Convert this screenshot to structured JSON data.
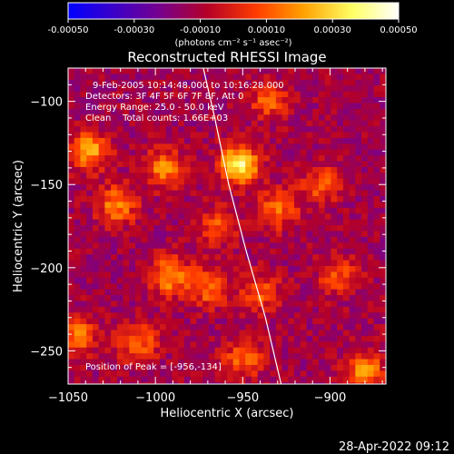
{
  "footer_timestamp": "28-Apr-2022 09:12",
  "colorbar": {
    "tick_labels": [
      "-0.00050",
      "-0.00030",
      "-0.00010",
      "0.00010",
      "0.00030",
      "0.00050"
    ],
    "tick_values": [
      -0.0005,
      -0.0003,
      -0.0001,
      0.0001,
      0.0003,
      0.0005
    ],
    "range": [
      -0.0005,
      0.0005
    ],
    "unit_label": "(photons cm⁻² s⁻¹ asec⁻²)",
    "colors": [
      "#0000ff",
      "#3c00c8",
      "#78008c",
      "#b40028",
      "#ff3c00",
      "#ffa000",
      "#ffff64",
      "#ffffff"
    ]
  },
  "chart_data": {
    "type": "heatmap",
    "title": "Reconstructed RHESSI Image",
    "xlabel": "Heliocentric X (arcsec)",
    "ylabel": "Heliocentric Y (arcsec)",
    "xlim": [
      -1050,
      -868
    ],
    "ylim": [
      -270,
      -80
    ],
    "xticks": [
      -1050,
      -1000,
      -950,
      -900
    ],
    "xtick_labels": [
      "−1050",
      "−1000",
      "−950",
      "−900"
    ],
    "yticks": [
      -250,
      -200,
      -150,
      -100
    ],
    "ytick_labels": [
      "−250",
      "−200",
      "−150",
      "−100"
    ],
    "grid": false,
    "annotations": [
      "9-Feb-2005 10:14:48.000 to 10:16:28.000",
      "Detectors: 3F 4F 5F 6F 7F 8F, Att 0",
      "Energy Range: 25.0 - 50.0 keV",
      "Clean    Total counts: 1.66E+03",
      "Position of Peak = [-956,-134]"
    ],
    "peak": [
      -956,
      -134
    ],
    "limb_curve": [
      [
        -973,
        -78
      ],
      [
        -966,
        -110
      ],
      [
        -958,
        -150
      ],
      [
        -948,
        -190
      ],
      [
        -937,
        -230
      ],
      [
        -928,
        -270
      ]
    ],
    "blobs": [
      {
        "x": -952,
        "y": -138,
        "v": 0.0005
      },
      {
        "x": -1038,
        "y": -130,
        "v": 0.00035
      },
      {
        "x": -1022,
        "y": -162,
        "v": 0.0003
      },
      {
        "x": -995,
        "y": -140,
        "v": 0.00028
      },
      {
        "x": -992,
        "y": -205,
        "v": 0.00032
      },
      {
        "x": -970,
        "y": -212,
        "v": 0.00025
      },
      {
        "x": -1045,
        "y": -240,
        "v": 0.00028
      },
      {
        "x": -1010,
        "y": -245,
        "v": 0.00025
      },
      {
        "x": -935,
        "y": -100,
        "v": 0.00022
      },
      {
        "x": -930,
        "y": -165,
        "v": 0.00025
      },
      {
        "x": -905,
        "y": -150,
        "v": 0.00022
      },
      {
        "x": -940,
        "y": -215,
        "v": 0.00022
      },
      {
        "x": -950,
        "y": -255,
        "v": 0.00025
      },
      {
        "x": -880,
        "y": -262,
        "v": 0.0003
      },
      {
        "x": -895,
        "y": -205,
        "v": 0.0002
      },
      {
        "x": -965,
        "y": -175,
        "v": 0.00022
      }
    ]
  }
}
